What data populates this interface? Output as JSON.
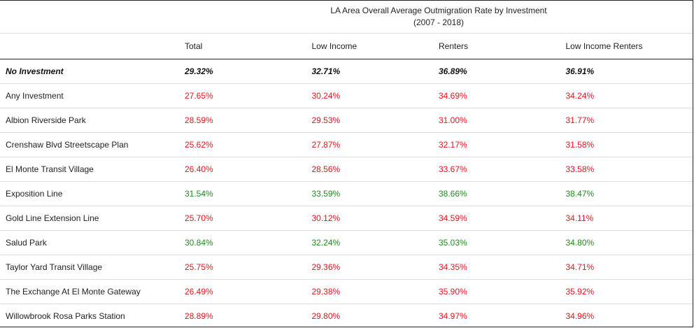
{
  "chart_data": {
    "type": "table",
    "title": "LA Area Overall Average Outmigration Rate by Investment",
    "subtitle": "(2007 - 2018)",
    "columns": [
      "Total",
      "Low Income",
      "Renters",
      "Low Income Renters"
    ],
    "rows": [
      {
        "label": "No Investment",
        "values": [
          "29.32%",
          "32.71%",
          "36.89%",
          "36.91%"
        ],
        "style": "baseline"
      },
      {
        "label": "Any Investment",
        "values": [
          "27.65%",
          "30.24%",
          "34.69%",
          "34.24%"
        ],
        "style": "lower"
      },
      {
        "label": "Albion Riverside Park",
        "values": [
          "28.59%",
          "29.53%",
          "31.00%",
          "31.77%"
        ],
        "style": "lower"
      },
      {
        "label": "Crenshaw Blvd Streetscape Plan",
        "values": [
          "25.62%",
          "27.87%",
          "32.17%",
          "31.58%"
        ],
        "style": "lower"
      },
      {
        "label": "El Monte Transit Village",
        "values": [
          "26.40%",
          "28.56%",
          "33.67%",
          "33.58%"
        ],
        "style": "lower"
      },
      {
        "label": "Exposition Line",
        "values": [
          "31.54%",
          "33.59%",
          "38.66%",
          "38.47%"
        ],
        "style": "higher"
      },
      {
        "label": "Gold Line Extension Line",
        "values": [
          "25.70%",
          "30.12%",
          "34.59%",
          "34.11%"
        ],
        "style": "lower"
      },
      {
        "label": "Salud Park",
        "values": [
          "30.84%",
          "32.24%",
          "35.03%",
          "34.80%"
        ],
        "style": "higher"
      },
      {
        "label": "Taylor Yard Transit Village",
        "values": [
          "25.75%",
          "29.36%",
          "34.35%",
          "34.71%"
        ],
        "style": "lower"
      },
      {
        "label": "The Exchange At El Monte Gateway",
        "values": [
          "26.49%",
          "29.38%",
          "35.90%",
          "35.92%"
        ],
        "style": "lower"
      },
      {
        "label": "Willowbrook Rosa Parks Station",
        "values": [
          "28.89%",
          "29.80%",
          "34.97%",
          "34.96%"
        ],
        "style": "lower"
      }
    ],
    "colors": {
      "lower": "#e8101e",
      "higher": "#1f8a1f",
      "baseline": "#111111"
    }
  }
}
